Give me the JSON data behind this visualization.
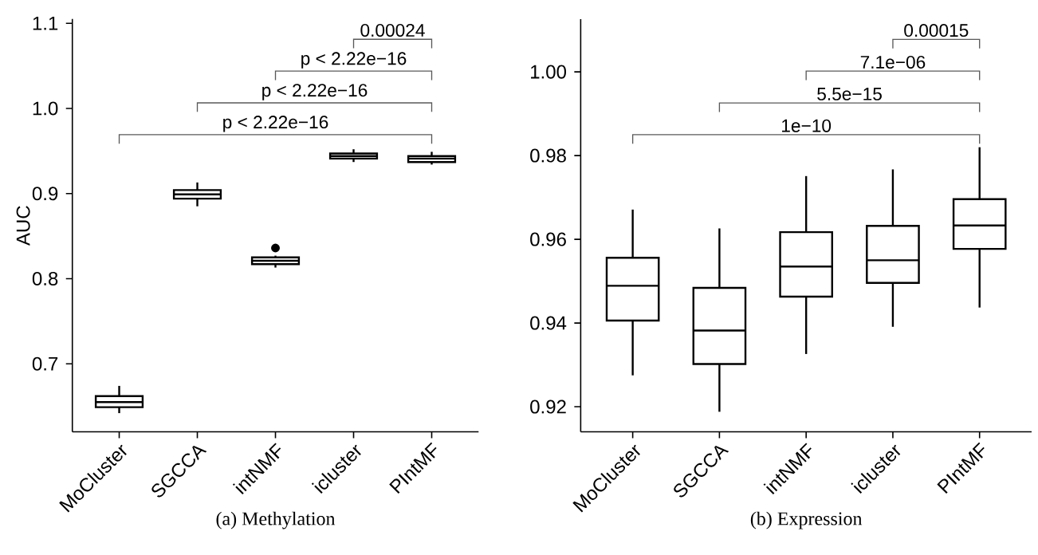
{
  "chart_data": [
    {
      "type": "box",
      "title": "(a) Methylation",
      "ylabel": "AUC",
      "categories": [
        "MoCluster",
        "SGCCA",
        "intNMF",
        "icluster",
        "PIntMF"
      ],
      "boxes": [
        {
          "low": 0.642,
          "q1": 0.649,
          "median": 0.655,
          "q3": 0.662,
          "high": 0.674
        },
        {
          "low": 0.885,
          "q1": 0.894,
          "median": 0.899,
          "q3": 0.904,
          "high": 0.913
        },
        {
          "low": 0.813,
          "q1": 0.817,
          "median": 0.821,
          "q3": 0.825,
          "high": 0.827,
          "outliers": [
            0.836
          ]
        },
        {
          "low": 0.937,
          "q1": 0.941,
          "median": 0.944,
          "q3": 0.947,
          "high": 0.952
        },
        {
          "low": 0.934,
          "q1": 0.937,
          "median": 0.941,
          "q3": 0.944,
          "high": 0.949
        }
      ],
      "ylim": [
        0.62,
        1.105
      ],
      "yticks": [
        0.7,
        0.8,
        0.9,
        {
          "value": 1.0,
          "label": "1.0"
        },
        1.1
      ],
      "annotations": [
        "p < 2.22e−16",
        "p < 2.22e−16",
        "p < 2.22e−16",
        "0.00024"
      ]
    },
    {
      "type": "box",
      "title": "(b) Expression",
      "categories": [
        "MoCluster",
        "SGCCA",
        "intNMF",
        "icluster",
        "PIntMF"
      ],
      "boxes": [
        {
          "low": 0.9275,
          "q1": 0.9406,
          "median": 0.9489,
          "q3": 0.9556,
          "high": 0.9671
        },
        {
          "low": 0.9188,
          "q1": 0.9302,
          "median": 0.9382,
          "q3": 0.9484,
          "high": 0.9626
        },
        {
          "low": 0.9326,
          "q1": 0.9463,
          "median": 0.9535,
          "q3": 0.9617,
          "high": 0.9751
        },
        {
          "low": 0.9391,
          "q1": 0.9496,
          "median": 0.955,
          "q3": 0.9632,
          "high": 0.9767
        },
        {
          "low": 0.9437,
          "q1": 0.9577,
          "median": 0.9633,
          "q3": 0.9696,
          "high": 0.982
        }
      ],
      "ylim": [
        0.914,
        1.0126
      ],
      "yticks": [
        {
          "value": 0.92,
          "label": "0.92"
        },
        {
          "value": 0.94,
          "label": "0.94"
        },
        {
          "value": 0.96,
          "label": "0.96"
        },
        {
          "value": 0.98,
          "label": "0.98"
        },
        {
          "value": 1.0,
          "label": "1.00"
        }
      ],
      "annotations": [
        "1e−10",
        "5.5e−15",
        "7.1e−06",
        "0.00015"
      ]
    }
  ]
}
